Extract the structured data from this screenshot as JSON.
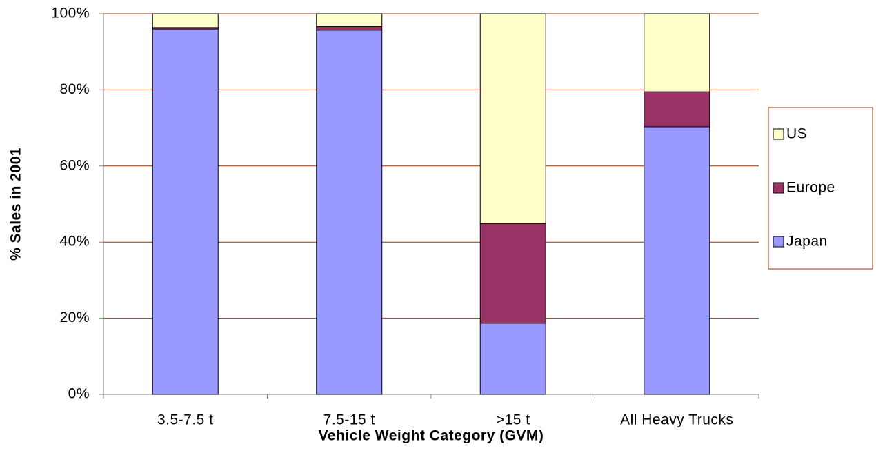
{
  "chart_data": {
    "type": "stacked_bar",
    "xlabel": "Vehicle Weight Category (GVM)",
    "ylabel": "% Sales in 2001",
    "categories": [
      "3.5-7.5 t",
      "7.5-15 t",
      ">15 t",
      "All Heavy Trucks"
    ],
    "series": [
      {
        "name": "Japan",
        "color": "#9999ff",
        "values": [
          96,
          95.7,
          18.7,
          70.3
        ]
      },
      {
        "name": "Europe",
        "color": "#993366",
        "values": [
          0.4,
          1,
          26.2,
          9.2
        ]
      },
      {
        "name": "US",
        "color": "#ffffcc",
        "values": [
          3.6,
          3.3,
          55.1,
          20.5
        ]
      }
    ],
    "ylim": [
      0,
      100
    ],
    "yticks": [
      {
        "value": 0,
        "label": "0%"
      },
      {
        "value": 20,
        "label": "20%"
      },
      {
        "value": 40,
        "label": "40%"
      },
      {
        "value": 60,
        "label": "60%"
      },
      {
        "value": 80,
        "label": "80%"
      },
      {
        "value": 100,
        "label": "100%"
      }
    ],
    "grid": true,
    "legend": "right"
  }
}
